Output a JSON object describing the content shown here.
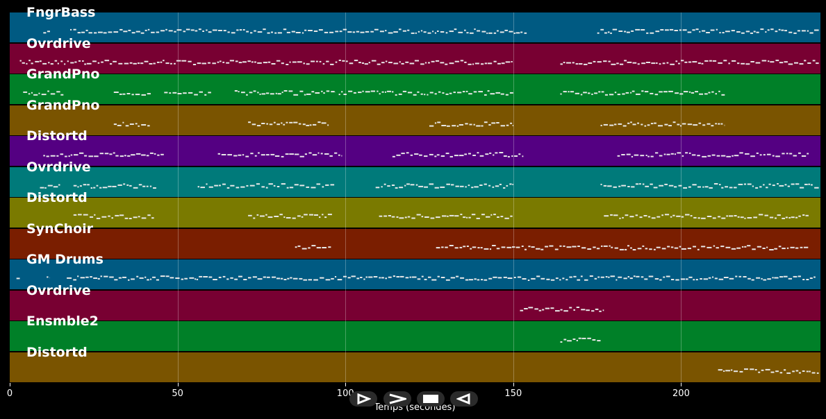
{
  "chart_data": {
    "type": "piano-roll",
    "xlabel": "Temps (secondes)",
    "xlim": [
      0,
      241.5
    ],
    "xticks": [
      0,
      50,
      100,
      150,
      200
    ],
    "grid": true,
    "tracks": [
      {
        "name": "FngrBass",
        "color": "#005a82",
        "segments": [
          [
            10,
            12
          ],
          [
            18,
            154
          ],
          [
            175,
            241
          ]
        ]
      },
      {
        "name": "Ovrdrive",
        "color": "#780032",
        "segments": [
          [
            3,
            150
          ],
          [
            164,
            241
          ]
        ]
      },
      {
        "name": "GrandPno",
        "color": "#008028",
        "segments": [
          [
            4,
            16
          ],
          [
            31,
            42
          ],
          [
            46,
            60
          ],
          [
            67,
            97
          ],
          [
            98,
            150
          ],
          [
            164,
            213
          ]
        ]
      },
      {
        "name": "GrandPno",
        "color": "#7a5400",
        "segments": [
          [
            31,
            42
          ],
          [
            71,
            95
          ],
          [
            125,
            150
          ],
          [
            176,
            213
          ]
        ]
      },
      {
        "name": "Distortd",
        "color": "#540082",
        "segments": [
          [
            10,
            46
          ],
          [
            62,
            99
          ],
          [
            114,
            153
          ],
          [
            181,
            238
          ]
        ]
      },
      {
        "name": "Ovrdrive",
        "color": "#007a7a",
        "segments": [
          [
            9,
            15
          ],
          [
            19,
            44
          ],
          [
            56,
            97
          ],
          [
            109,
            150
          ],
          [
            176,
            241
          ]
        ]
      },
      {
        "name": "Distortd",
        "color": "#7a7a00",
        "segments": [
          [
            19,
            43
          ],
          [
            71,
            96
          ],
          [
            110,
            150
          ],
          [
            177,
            238
          ]
        ]
      },
      {
        "name": "SynChoir",
        "color": "#7a1e00",
        "segments": [
          [
            85,
            96
          ],
          [
            127,
            238
          ]
        ]
      },
      {
        "name": "GM Drums",
        "color": "#005a82",
        "segments": [
          [
            2,
            3
          ],
          [
            11,
            12
          ],
          [
            17,
            240
          ]
        ]
      },
      {
        "name": "Ovrdrive",
        "color": "#780032",
        "segments": [
          [
            152,
            177
          ]
        ]
      },
      {
        "name": "Ensmble2",
        "color": "#008028",
        "segments": [
          [
            164,
            176
          ]
        ]
      },
      {
        "name": "Distortd",
        "color": "#7a5400",
        "segments": [
          [
            211,
            241
          ]
        ]
      }
    ]
  },
  "controls": {
    "play_icon": "play-outline-icon",
    "forward_icon": "chevron-right-icon",
    "stop_icon": "stop-icon",
    "back_icon": "play-reverse-outline-icon"
  }
}
